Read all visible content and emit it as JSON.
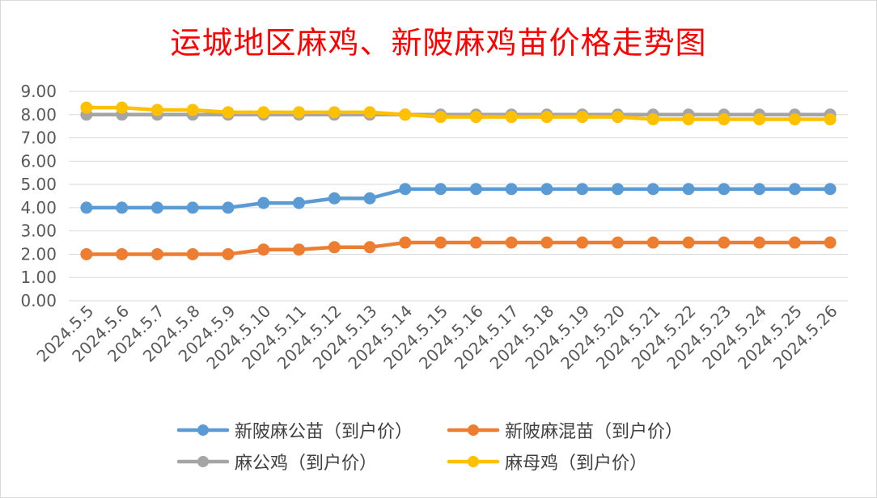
{
  "chart_data": {
    "type": "line",
    "title": "运城地区麻鸡、新陂麻鸡苗价格走势图",
    "xlabel": "",
    "ylabel": "",
    "ylim": [
      0,
      9
    ],
    "yticks": [
      "0.00",
      "1.00",
      "2.00",
      "3.00",
      "4.00",
      "5.00",
      "6.00",
      "7.00",
      "8.00",
      "9.00"
    ],
    "grid": true,
    "legend_position": "bottom",
    "categories": [
      "2024.5.5",
      "2024.5.6",
      "2024.5.7",
      "2024.5.8",
      "2024.5.9",
      "2024.5.10",
      "2024.5.11",
      "2024.5.12",
      "2024.5.13",
      "2024.5.14",
      "2024.5.15",
      "2024.5.16",
      "2024.5.17",
      "2024.5.18",
      "2024.5.19",
      "2024.5.20",
      "2024.5.21",
      "2024.5.22",
      "2024.5.23",
      "2024.5.24",
      "2024.5.25",
      "2024.5.26"
    ],
    "series": [
      {
        "name": "新陂麻公苗（到户价）",
        "color": "#5b9bd5",
        "values": [
          4.0,
          4.0,
          4.0,
          4.0,
          4.0,
          4.2,
          4.2,
          4.4,
          4.4,
          4.8,
          4.8,
          4.8,
          4.8,
          4.8,
          4.8,
          4.8,
          4.8,
          4.8,
          4.8,
          4.8,
          4.8,
          4.8
        ]
      },
      {
        "name": "新陂麻混苗（到户价）",
        "color": "#ed7d31",
        "values": [
          2.0,
          2.0,
          2.0,
          2.0,
          2.0,
          2.2,
          2.2,
          2.3,
          2.3,
          2.5,
          2.5,
          2.5,
          2.5,
          2.5,
          2.5,
          2.5,
          2.5,
          2.5,
          2.5,
          2.5,
          2.5,
          2.5
        ]
      },
      {
        "name": "麻公鸡（到户价）",
        "color": "#a5a5a5",
        "values": [
          8.0,
          8.0,
          8.0,
          8.0,
          8.0,
          8.0,
          8.0,
          8.0,
          8.0,
          8.0,
          8.0,
          8.0,
          8.0,
          8.0,
          8.0,
          8.0,
          8.0,
          8.0,
          8.0,
          8.0,
          8.0,
          8.0
        ]
      },
      {
        "name": "麻母鸡（到户价）",
        "color": "#ffc000",
        "values": [
          8.3,
          8.3,
          8.2,
          8.2,
          8.1,
          8.1,
          8.1,
          8.1,
          8.1,
          8.0,
          7.9,
          7.9,
          7.9,
          7.9,
          7.9,
          7.9,
          7.8,
          7.8,
          7.8,
          7.8,
          7.8,
          7.8
        ]
      }
    ]
  }
}
